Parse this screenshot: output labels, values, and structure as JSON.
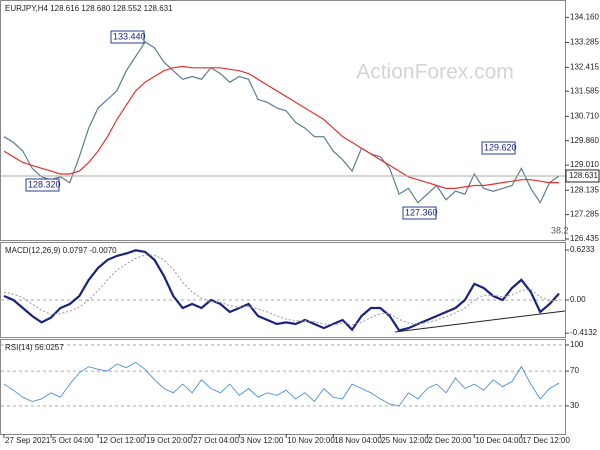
{
  "chart_data": [
    {
      "type": "line",
      "title": "EURJPY,H4 128.616 128.680 128.552 128.631",
      "watermark": "ActionForex.com",
      "annotations": [
        "133.440",
        "128.320",
        "127.360",
        "129.620",
        "38.2"
      ],
      "ylim": [
        126.435,
        134.66
      ],
      "yticks": [
        {
          "value": 134.16,
          "label": "134.160"
        },
        133.285,
        132.415,
        131.585,
        {
          "value": 130.71,
          "label": "130.710"
        },
        {
          "value": 129.86,
          "label": "129.860"
        },
        {
          "value": 129.01,
          "label": "129.010"
        },
        128.135,
        127.285,
        126.435
      ],
      "series": [
        {
          "name": "EURJPY",
          "color": "#5b7d8f",
          "values": [
            130.0,
            129.8,
            129.5,
            128.9,
            128.6,
            128.5,
            128.6,
            128.4,
            129.3,
            130.3,
            131.0,
            131.3,
            131.6,
            132.3,
            132.8,
            133.3,
            133.1,
            132.6,
            132.3,
            132.0,
            132.1,
            132.0,
            132.4,
            132.2,
            131.9,
            132.1,
            132.0,
            131.3,
            131.2,
            131.0,
            130.9,
            130.5,
            130.3,
            130.0,
            130.0,
            129.5,
            129.2,
            128.8,
            129.6,
            129.4,
            129.3,
            128.9,
            128.0,
            128.2,
            127.7,
            128.0,
            128.3,
            127.8,
            128.1,
            128.0,
            128.7,
            128.2,
            128.1,
            128.2,
            128.3,
            128.9,
            128.2,
            127.7,
            128.4,
            128.631
          ]
        },
        {
          "name": "MA",
          "color": "#e0342f",
          "values": [
            129.5,
            129.3,
            129.1,
            129.0,
            128.9,
            128.8,
            128.7,
            128.7,
            128.8,
            129.1,
            129.5,
            130.0,
            130.6,
            131.1,
            131.6,
            131.9,
            132.1,
            132.3,
            132.4,
            132.45,
            132.4,
            132.4,
            132.4,
            132.4,
            132.35,
            132.3,
            132.2,
            132.0,
            131.8,
            131.6,
            131.4,
            131.2,
            131.0,
            130.8,
            130.6,
            130.3,
            130.0,
            129.8,
            129.6,
            129.4,
            129.2,
            129.0,
            128.8,
            128.6,
            128.5,
            128.4,
            128.3,
            128.2,
            128.2,
            128.25,
            128.3,
            128.3,
            128.35,
            128.4,
            128.45,
            128.5,
            128.5,
            128.45,
            128.4,
            128.4
          ]
        }
      ]
    },
    {
      "type": "line",
      "title": "MACD(12,26,9) 0.0797 -0.0070",
      "ylim": [
        -0.449,
        0.698
      ],
      "yticks": [
        0.6233,
        {
          "value": 0,
          "label": "0.00"
        },
        -0.4132
      ],
      "series": [
        {
          "name": "MACD",
          "color": "#1a237e",
          "values": [
            0.05,
            0.0,
            -0.1,
            -0.2,
            -0.28,
            -0.22,
            -0.1,
            -0.05,
            0.05,
            0.25,
            0.4,
            0.5,
            0.55,
            0.58,
            0.62,
            0.6,
            0.5,
            0.3,
            0.05,
            -0.1,
            -0.05,
            -0.1,
            0.0,
            -0.05,
            -0.15,
            -0.1,
            -0.05,
            -0.2,
            -0.25,
            -0.3,
            -0.28,
            -0.3,
            -0.25,
            -0.3,
            -0.35,
            -0.3,
            -0.25,
            -0.37,
            -0.2,
            -0.1,
            -0.1,
            -0.2,
            -0.38,
            -0.35,
            -0.3,
            -0.25,
            -0.2,
            -0.15,
            -0.1,
            0.0,
            0.2,
            0.15,
            0.05,
            0.0,
            0.15,
            0.25,
            0.1,
            -0.15,
            -0.05,
            0.0797
          ]
        },
        {
          "name": "Signal",
          "color": "#9a9a9a",
          "values": [
            0.1,
            0.07,
            0.03,
            -0.05,
            -0.13,
            -0.18,
            -0.17,
            -0.14,
            -0.09,
            0.0,
            0.12,
            0.25,
            0.37,
            0.45,
            0.52,
            0.56,
            0.56,
            0.5,
            0.38,
            0.22,
            0.1,
            0.02,
            -0.02,
            -0.03,
            -0.07,
            -0.09,
            -0.08,
            -0.11,
            -0.15,
            -0.2,
            -0.24,
            -0.26,
            -0.26,
            -0.27,
            -0.3,
            -0.31,
            -0.29,
            -0.31,
            -0.28,
            -0.22,
            -0.17,
            -0.17,
            -0.24,
            -0.29,
            -0.3,
            -0.28,
            -0.25,
            -0.21,
            -0.16,
            -0.1,
            0.0,
            0.06,
            0.06,
            0.04,
            0.06,
            0.12,
            0.13,
            0.04,
            -0.01,
            -0.007
          ]
        }
      ]
    },
    {
      "type": "line",
      "title": "RSI(14) 56.0257",
      "ylim": [
        0,
        105.7
      ],
      "yticks": [
        100,
        70,
        30
      ],
      "grid": true,
      "x_labels": [
        "27 Sep 2021",
        "5 Oct 04:00",
        "12 Oct 12:00",
        "19 Oct 20:00",
        "27 Oct 04:00",
        "3 Nov 12:00",
        "10 Nov 20:00",
        "18 Nov 04:00",
        "25 Nov 12:00",
        "2 Dec 20:00",
        "10 Dec 04:00",
        "17 Dec 12:00"
      ],
      "series": [
        {
          "name": "RSI",
          "color": "#4a90d9",
          "values": [
            55,
            48,
            40,
            35,
            38,
            45,
            40,
            55,
            68,
            75,
            72,
            70,
            78,
            74,
            80,
            72,
            60,
            50,
            45,
            55,
            45,
            60,
            50,
            45,
            55,
            42,
            50,
            40,
            45,
            42,
            48,
            38,
            45,
            35,
            50,
            40,
            38,
            55,
            50,
            45,
            38,
            32,
            30,
            45,
            38,
            50,
            55,
            45,
            62,
            50,
            55,
            48,
            60,
            52,
            58,
            75,
            55,
            38,
            50,
            56.0257
          ]
        }
      ]
    }
  ]
}
